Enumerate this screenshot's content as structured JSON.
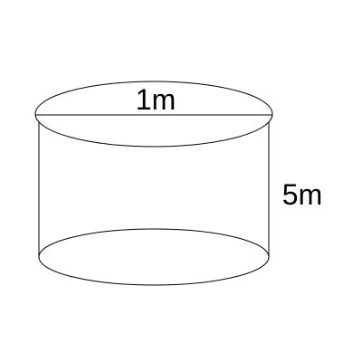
{
  "figure": {
    "diameter_label": "1m",
    "height_label": "5m"
  },
  "colors": {
    "stroke": "#000000",
    "background": "#ffffff"
  }
}
